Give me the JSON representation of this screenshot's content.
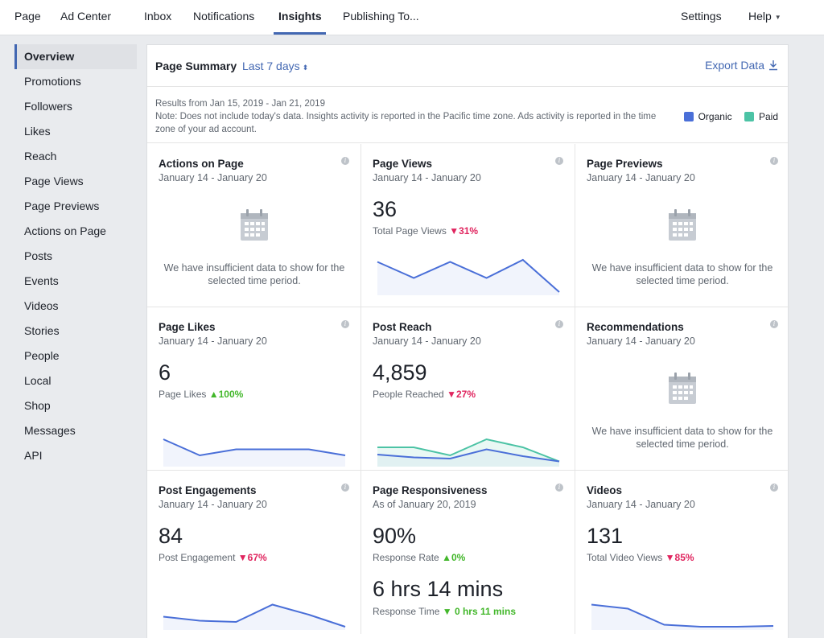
{
  "nav": {
    "left": [
      "Page",
      "Ad Center",
      "Inbox",
      "Notifications",
      "Insights",
      "Publishing To..."
    ],
    "settings": "Settings",
    "help": "Help"
  },
  "sidebar": {
    "items": [
      "Overview",
      "Promotions",
      "Followers",
      "Likes",
      "Reach",
      "Page Views",
      "Page Previews",
      "Actions on Page",
      "Posts",
      "Events",
      "Videos",
      "Stories",
      "People",
      "Local",
      "Shop",
      "Messages",
      "API"
    ],
    "active": "Overview"
  },
  "summary": {
    "title": "Page Summary",
    "range": "Last 7 days",
    "export": "Export Data",
    "results": "Results from Jan 15, 2019 - Jan 21, 2019",
    "note": "Note: Does not include today's data. Insights activity is reported in the Pacific time zone. Ads activity is reported in the time zone of your ad account.",
    "legend": [
      {
        "label": "Organic",
        "color": "#4a6fd8"
      },
      {
        "label": "Paid",
        "color": "#4cc3a5"
      }
    ]
  },
  "insufficient": "We have insufficient data to show for the selected time period.",
  "cards": {
    "actions": {
      "title": "Actions on Page",
      "date": "January 14 - January 20"
    },
    "pageviews": {
      "title": "Page Views",
      "date": "January 14 - January 20",
      "value": "36",
      "label": "Total Page Views",
      "change": "31%",
      "trend": "down",
      "series": [
        0.75,
        0.35,
        0.75,
        0.35,
        0.8,
        0.0
      ]
    },
    "previews": {
      "title": "Page Previews",
      "date": "January 14 - January 20"
    },
    "likes": {
      "title": "Page Likes",
      "date": "January 14 - January 20",
      "value": "6",
      "label": "Page Likes",
      "change": "100%",
      "trend": "up",
      "series": [
        0.6,
        0.2,
        0.35,
        0.35,
        0.35,
        0.2
      ]
    },
    "reach": {
      "title": "Post Reach",
      "date": "January 14 - January 20",
      "value": "4,859",
      "label": "People Reached",
      "change": "27%",
      "trend": "down",
      "series": [
        0.22,
        0.15,
        0.12,
        0.35,
        0.18,
        0.05
      ],
      "series_paid": [
        0.4,
        0.4,
        0.2,
        0.6,
        0.4,
        0.05
      ]
    },
    "recs": {
      "title": "Recommendations",
      "date": "January 14 - January 20"
    },
    "engagements": {
      "title": "Post Engagements",
      "date": "January 14 - January 20",
      "value": "84",
      "label": "Post Engagement",
      "change": "67%",
      "trend": "down",
      "series": [
        0.25,
        0.15,
        0.12,
        0.55,
        0.3,
        0.0
      ]
    },
    "responsiveness": {
      "title": "Page Responsiveness",
      "date": "As of January 20, 2019",
      "value": "90%",
      "label": "Response Rate",
      "change": "0%",
      "trend": "up",
      "value2": "6 hrs 14 mins",
      "label2": "Response Time",
      "change2": "0 hrs 11 mins",
      "trend2": "down"
    },
    "videos": {
      "title": "Videos",
      "date": "January 14 - January 20",
      "value": "131",
      "label": "Total Video Views",
      "change": "85%",
      "trend": "down",
      "series": [
        0.55,
        0.45,
        0.05,
        0.0,
        0.0,
        0.02
      ]
    }
  }
}
